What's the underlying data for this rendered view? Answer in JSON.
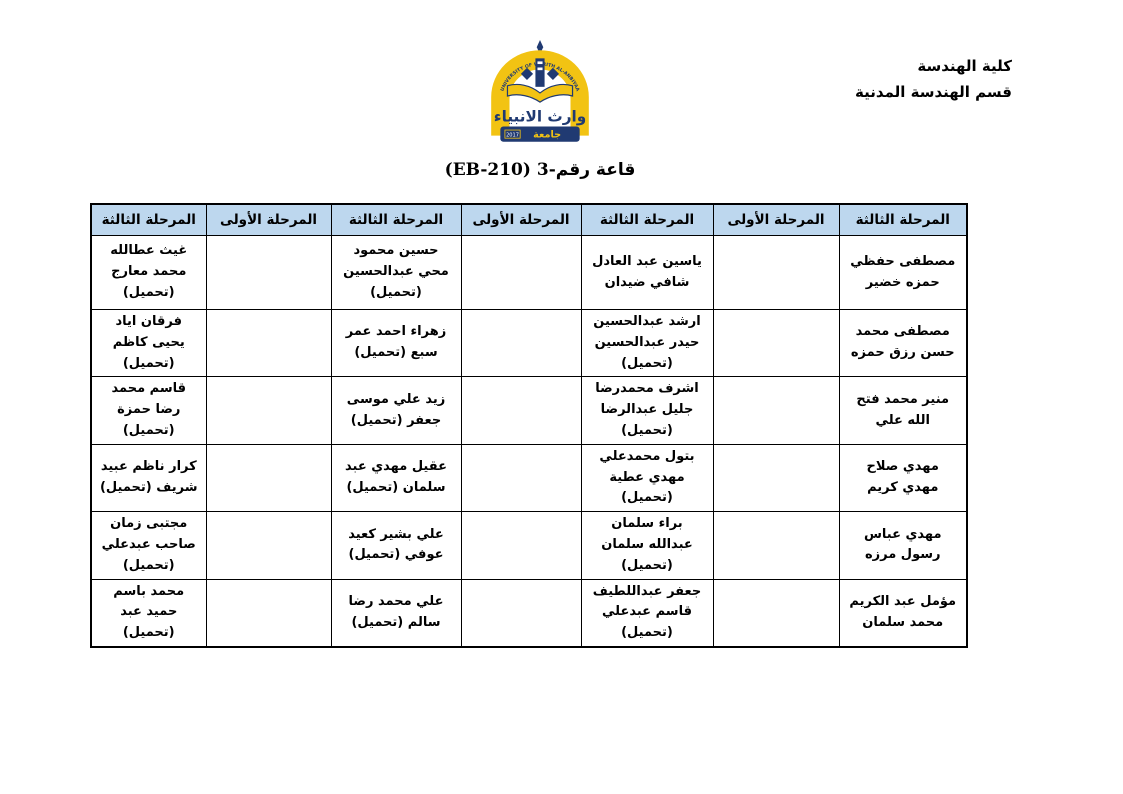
{
  "org": {
    "line1": "كلية الهندسة",
    "line2": "قسم الهندسة المدنية"
  },
  "title": "قاعة رقم-3 (EB-210)",
  "logo": {
    "arch_text": "UNIVERSITY OF WARITH AL-ANBIYAA",
    "calligraphy": "وارث الانبياء",
    "word_university": "جامعة",
    "year": "2017"
  },
  "table": {
    "columns": [
      {
        "header": "المرحلة الثالثة",
        "cells": [
          "مصطفى حفظي حمزه خضير",
          "مصطفى محمد حسن رزق حمزه",
          "منير محمد فتح الله علي",
          "مهدي صلاح مهدي كريم",
          "مهدي عباس رسول مرزه",
          "مؤمل عبد الكريم محمد سلمان"
        ]
      },
      {
        "header": "المرحلة الأولى",
        "cells": [
          "",
          "",
          "",
          "",
          "",
          ""
        ]
      },
      {
        "header": "المرحلة الثالثة",
        "cells": [
          "ياسين عبد العادل شافي ضيدان",
          "ارشد عبدالحسين حيدر عبدالحسين (تحميل)",
          "اشرف محمدرضا جليل عبدالرضا (تحميل)",
          "بتول محمدعلي مهدي عطية (تحميل)",
          "براء سلمان عبدالله سلمان (تحميل)",
          "جعفر عبداللطيف قاسم عبدعلي (تحميل)"
        ]
      },
      {
        "header": "المرحلة الأولى",
        "cells": [
          "",
          "",
          "",
          "",
          "",
          ""
        ]
      },
      {
        "header": "المرحلة الثالثة",
        "cells": [
          "حسين محمود محي عبدالحسين (تحميل)",
          "زهراء احمد عمر سبع (تحميل)",
          "زيد علي موسى جعفر (تحميل)",
          "عقيل مهدي عبد سلمان (تحميل)",
          "علي بشير كعيد عوفي (تحميل)",
          "علي محمد رضا سالم (تحميل)"
        ]
      },
      {
        "header": "المرحلة الأولى",
        "cells": [
          "",
          "",
          "",
          "",
          "",
          ""
        ]
      },
      {
        "header": "المرحلة الثالثة",
        "cells": [
          "غيث عطالله محمد معارج (تحميل)",
          "فرقان اياد يحيى كاظم (تحميل)",
          "قاسم محمد رضا حمزة (تحميل)",
          "كرار ناظم عبيد شريف (تحميل)",
          "مجتبى زمان صاحب عبدعلي (تحميل)",
          "محمد باسم حميد عبد (تحميل)"
        ]
      }
    ]
  },
  "colors": {
    "header_bg": "#BDD7EE",
    "border": "#000000",
    "logo_gold": "#F2C313",
    "logo_navy": "#203A72"
  }
}
